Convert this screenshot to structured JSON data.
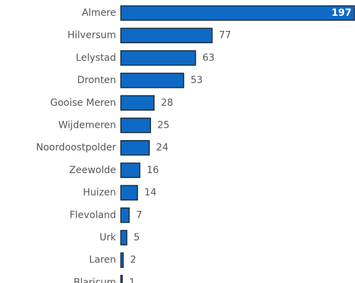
{
  "chart_data": {
    "type": "bar",
    "orientation": "horizontal",
    "categories": [
      "Almere",
      "Hilversum",
      "Lelystad",
      "Dronten",
      "Gooise Meren",
      "Wijdemeren",
      "Noordoostpolder",
      "Zeewolde",
      "Huizen",
      "Flevoland",
      "Urk",
      "Laren",
      "Blaricum"
    ],
    "values": [
      197,
      77,
      63,
      53,
      28,
      25,
      24,
      16,
      14,
      7,
      5,
      2,
      1
    ],
    "title": "",
    "xlabel": "",
    "ylabel": "",
    "xlim": [
      0,
      197
    ],
    "grid": false,
    "legend": "none",
    "bar_color": "#0e6ac4",
    "bar_stroke_color": "#1b2a3a",
    "category_label_color": "#555555",
    "value_label_color": "#555555",
    "inside_value_label_color": "#ffffff"
  }
}
